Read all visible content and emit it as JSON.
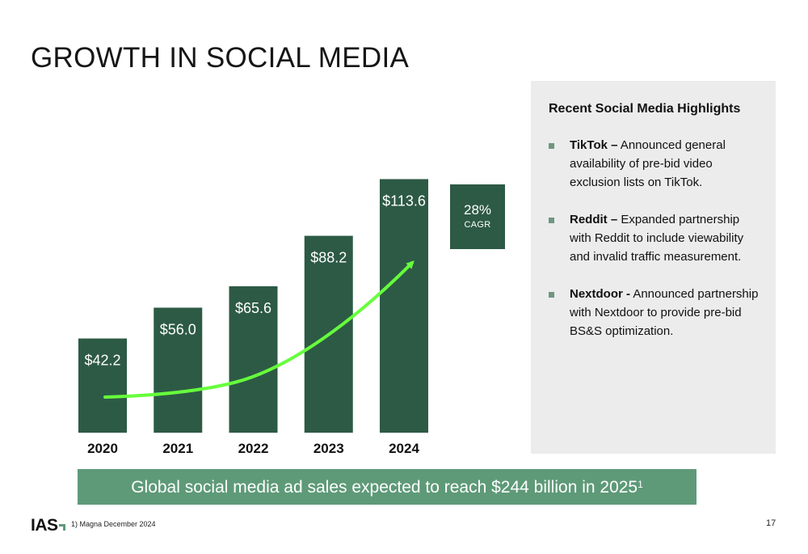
{
  "page": {
    "title": "GROWTH IN SOCIAL MEDIA",
    "page_number": "17"
  },
  "chart_data": {
    "type": "bar",
    "categories": [
      "2020",
      "2021",
      "2022",
      "2023",
      "2024"
    ],
    "values": [
      42.2,
      56.0,
      65.6,
      88.2,
      113.6
    ],
    "value_labels": [
      "$42.2",
      "$56.0",
      "$65.6",
      "$88.2",
      "$113.6"
    ],
    "title": "",
    "xlabel": "",
    "ylabel": "",
    "ylim": [
      0,
      125
    ],
    "grid": false,
    "bar_color": "#2d5a45",
    "trend_arrow_color": "#66ff3c",
    "annotation": {
      "value": "28%",
      "label": "CAGR"
    }
  },
  "highlights": {
    "title": "Recent Social Media Highlights",
    "items": [
      {
        "name": "TikTok –",
        "text": " Announced general availability of pre-bid video exclusion lists on TikTok."
      },
      {
        "name": "Reddit –",
        "text": " Expanded partnership with Reddit to include viewability and invalid traffic measurement."
      },
      {
        "name": "Nextdoor -",
        "text": " Announced partnership with Nextdoor to provide pre-bid BS&S optimization."
      }
    ]
  },
  "banner": {
    "text": "Global social media ad sales expected to reach $244 billion in 2025",
    "footnote_marker": "1"
  },
  "footer": {
    "logo_text": "IAS",
    "footnote": "1) Magna December 2024"
  },
  "colors": {
    "accent": "#5e9a78",
    "dark_green": "#2d5a45",
    "panel_bg": "#ececec"
  }
}
